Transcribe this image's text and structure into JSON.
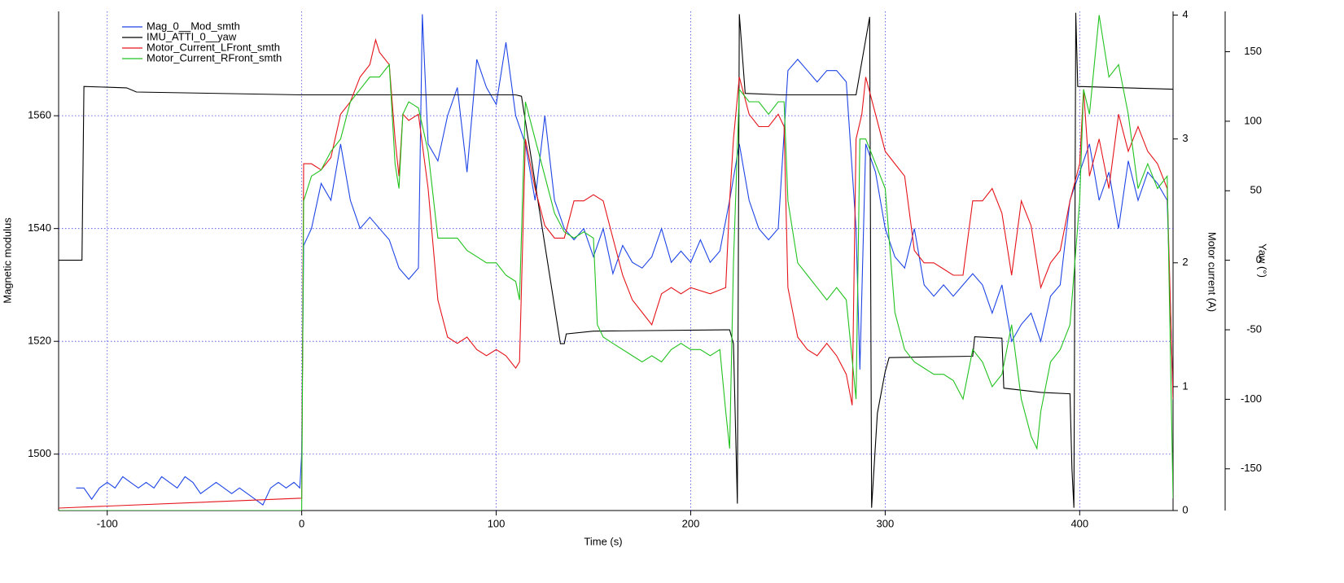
{
  "chart_data": {
    "type": "line",
    "xlabel": "Time (s)",
    "ylabel": "Magnetic modulus",
    "y2label": "Motor current  (A)",
    "y3label": "Yaw (°)",
    "xlim": [
      -125,
      448
    ],
    "xticks": [
      -100,
      0,
      100,
      200,
      300,
      400
    ],
    "ylim": [
      1490,
      1578.5
    ],
    "yticks": [
      1500,
      1520,
      1540,
      1560
    ],
    "y2lim": [
      0,
      4.03
    ],
    "y2ticks": [
      0,
      1,
      2,
      3,
      4
    ],
    "y3lim": [
      -180,
      179
    ],
    "y3ticks": [
      -150,
      -100,
      -50,
      0,
      50,
      100,
      150
    ],
    "grid": true,
    "legend": "upper left",
    "series": [
      {
        "name": "Mag_0__Mod_smth",
        "color": "#1f45e6",
        "axis": "y",
        "x": [
          -116,
          -112,
          -108,
          -104,
          -100,
          -96,
          -92,
          -88,
          -84,
          -80,
          -76,
          -72,
          -68,
          -64,
          -60,
          -56,
          -52,
          -48,
          -44,
          -40,
          -36,
          -32,
          -28,
          -24,
          -20,
          -16,
          -12,
          -8,
          -4,
          -1,
          0,
          1,
          5,
          10,
          15,
          20,
          25,
          30,
          35,
          40,
          45,
          50,
          55,
          60,
          62,
          65,
          70,
          75,
          80,
          85,
          90,
          95,
          100,
          105,
          110,
          115,
          120,
          125,
          130,
          135,
          140,
          145,
          150,
          155,
          160,
          165,
          170,
          175,
          180,
          185,
          190,
          195,
          200,
          205,
          210,
          215,
          220,
          225,
          230,
          235,
          240,
          245,
          250,
          255,
          260,
          265,
          270,
          275,
          280,
          285,
          287,
          290,
          295,
          300,
          305,
          310,
          315,
          320,
          325,
          330,
          335,
          340,
          345,
          350,
          355,
          360,
          365,
          370,
          375,
          380,
          385,
          390,
          395,
          400,
          405,
          410,
          415,
          420,
          425,
          430,
          435,
          440,
          445,
          448
        ],
        "values": [
          1494,
          1494,
          1492,
          1494,
          1495,
          1494,
          1496,
          1495,
          1494,
          1495,
          1494,
          1496,
          1495,
          1494,
          1496,
          1495,
          1493,
          1494,
          1495,
          1494,
          1493,
          1494,
          1493,
          1492,
          1491,
          1494,
          1495,
          1494,
          1495,
          1494,
          1500,
          1537,
          1540,
          1548,
          1545,
          1555,
          1545,
          1540,
          1542,
          1540,
          1538,
          1533,
          1531,
          1533,
          1578,
          1555,
          1552,
          1560,
          1565,
          1550,
          1570,
          1565,
          1562,
          1573,
          1560,
          1555,
          1545,
          1560,
          1545,
          1540,
          1538,
          1540,
          1535,
          1540,
          1532,
          1537,
          1534,
          1533,
          1535,
          1540,
          1534,
          1536,
          1534,
          1538,
          1534,
          1536,
          1545,
          1555,
          1545,
          1540,
          1538,
          1540,
          1568,
          1570,
          1568,
          1566,
          1568,
          1568,
          1566,
          1540,
          1515,
          1555,
          1550,
          1540,
          1535,
          1533,
          1540,
          1530,
          1528,
          1530,
          1528,
          1530,
          1532,
          1530,
          1525,
          1530,
          1520,
          1523,
          1525,
          1520,
          1528,
          1530,
          1545,
          1550,
          1555,
          1545,
          1550,
          1540,
          1552,
          1545,
          1550,
          1548,
          1545,
          1510
        ]
      },
      {
        "name": "IMU_ATTI_0__yaw",
        "color": "#000000",
        "axis": "y3",
        "x": [
          -125,
          -113,
          -112,
          -90,
          -85,
          0,
          110,
          113,
          133,
          135,
          136,
          150,
          220,
          222,
          224,
          225,
          228,
          247,
          285,
          292,
          293,
          296,
          300,
          302,
          345,
          346,
          360,
          361,
          380,
          395,
          396,
          397,
          398,
          399,
          448
        ],
        "values": [
          0,
          0,
          125,
          124,
          121,
          119,
          119,
          118,
          -60,
          -60,
          -53,
          -51,
          -50,
          -60,
          -175,
          177,
          120,
          119,
          119,
          175,
          -178,
          -110,
          -80,
          -70,
          -69,
          -55,
          -56,
          -92,
          -95,
          -96,
          -150,
          -178,
          178,
          125,
          123
        ]
      },
      {
        "name": "Motor_Current_LFront_smth",
        "color": "#e5141a",
        "axis": "y2",
        "x": [
          -125,
          0,
          1,
          5,
          10,
          15,
          20,
          25,
          30,
          35,
          38,
          40,
          45,
          48,
          50,
          52,
          55,
          60,
          65,
          70,
          75,
          80,
          85,
          90,
          95,
          100,
          105,
          110,
          112,
          115,
          120,
          125,
          130,
          135,
          140,
          145,
          150,
          155,
          160,
          165,
          170,
          175,
          180,
          185,
          190,
          195,
          200,
          210,
          218,
          220,
          222,
          225,
          230,
          235,
          240,
          245,
          248,
          250,
          255,
          260,
          265,
          270,
          275,
          280,
          283,
          285,
          288,
          290,
          295,
          300,
          305,
          310,
          315,
          320,
          325,
          330,
          335,
          340,
          345,
          350,
          355,
          360,
          365,
          370,
          375,
          380,
          385,
          390,
          395,
          400,
          402,
          405,
          410,
          415,
          420,
          425,
          430,
          435,
          440,
          445,
          448
        ],
        "values": [
          0.02,
          0.1,
          2.8,
          2.8,
          2.75,
          2.85,
          3.2,
          3.3,
          3.5,
          3.6,
          3.8,
          3.7,
          3.6,
          3.0,
          2.7,
          3.2,
          3.15,
          3.2,
          2.6,
          1.7,
          1.4,
          1.35,
          1.4,
          1.3,
          1.25,
          1.3,
          1.25,
          1.15,
          1.2,
          3.0,
          2.6,
          2.3,
          2.2,
          2.2,
          2.5,
          2.5,
          2.55,
          2.5,
          2.2,
          1.9,
          1.7,
          1.6,
          1.5,
          1.75,
          1.8,
          1.75,
          1.8,
          1.75,
          1.8,
          2.5,
          3.0,
          3.5,
          3.2,
          3.1,
          3.1,
          3.2,
          3.1,
          1.8,
          1.4,
          1.3,
          1.25,
          1.35,
          1.25,
          1.1,
          0.85,
          3.0,
          3.2,
          3.5,
          3.2,
          2.9,
          2.8,
          2.7,
          2.1,
          2.0,
          2.0,
          1.95,
          1.9,
          1.9,
          2.5,
          2.5,
          2.6,
          2.4,
          1.9,
          2.5,
          2.3,
          1.8,
          2.0,
          2.1,
          2.5,
          2.8,
          3.4,
          2.7,
          3.0,
          2.6,
          3.2,
          2.9,
          3.1,
          2.9,
          2.8,
          2.6,
          0.9
        ]
      },
      {
        "name": "Motor_Current_RFront_smth",
        "color": "#22c21f",
        "axis": "y2",
        "x": [
          -125,
          0,
          1,
          5,
          10,
          15,
          20,
          25,
          30,
          35,
          40,
          45,
          48,
          50,
          52,
          55,
          60,
          65,
          70,
          75,
          80,
          85,
          90,
          95,
          100,
          105,
          110,
          112,
          115,
          120,
          125,
          130,
          135,
          140,
          145,
          150,
          152,
          155,
          160,
          165,
          170,
          175,
          180,
          185,
          190,
          195,
          200,
          205,
          210,
          215,
          218,
          220,
          222,
          225,
          230,
          235,
          240,
          245,
          248,
          250,
          255,
          260,
          265,
          270,
          275,
          280,
          285,
          287,
          290,
          295,
          300,
          305,
          310,
          315,
          320,
          325,
          330,
          335,
          340,
          345,
          350,
          355,
          360,
          365,
          370,
          375,
          378,
          380,
          385,
          390,
          395,
          400,
          402,
          405,
          410,
          415,
          420,
          425,
          430,
          435,
          440,
          445,
          448
        ],
        "values": [
          0.0,
          0.0,
          2.5,
          2.7,
          2.75,
          2.9,
          3.0,
          3.3,
          3.4,
          3.5,
          3.5,
          3.6,
          2.8,
          2.6,
          3.2,
          3.3,
          3.25,
          2.9,
          2.2,
          2.2,
          2.2,
          2.1,
          2.05,
          2.0,
          2.0,
          1.9,
          1.85,
          1.7,
          3.3,
          3.0,
          2.7,
          2.4,
          2.25,
          2.2,
          2.25,
          2.2,
          1.5,
          1.4,
          1.35,
          1.3,
          1.25,
          1.2,
          1.25,
          1.2,
          1.3,
          1.35,
          1.3,
          1.3,
          1.25,
          1.3,
          0.8,
          0.5,
          2.0,
          3.4,
          3.3,
          3.3,
          3.2,
          3.3,
          3.3,
          2.5,
          2.0,
          1.9,
          1.8,
          1.7,
          1.8,
          1.7,
          0.9,
          3.0,
          3.0,
          2.8,
          2.6,
          1.6,
          1.3,
          1.2,
          1.15,
          1.1,
          1.1,
          1.05,
          0.9,
          1.3,
          1.2,
          1.0,
          1.1,
          1.5,
          0.9,
          0.6,
          0.5,
          0.8,
          1.2,
          1.3,
          1.5,
          2.5,
          3.4,
          3.2,
          4.0,
          3.5,
          3.6,
          3.2,
          2.6,
          2.8,
          2.6,
          2.7,
          0.1
        ]
      }
    ]
  }
}
